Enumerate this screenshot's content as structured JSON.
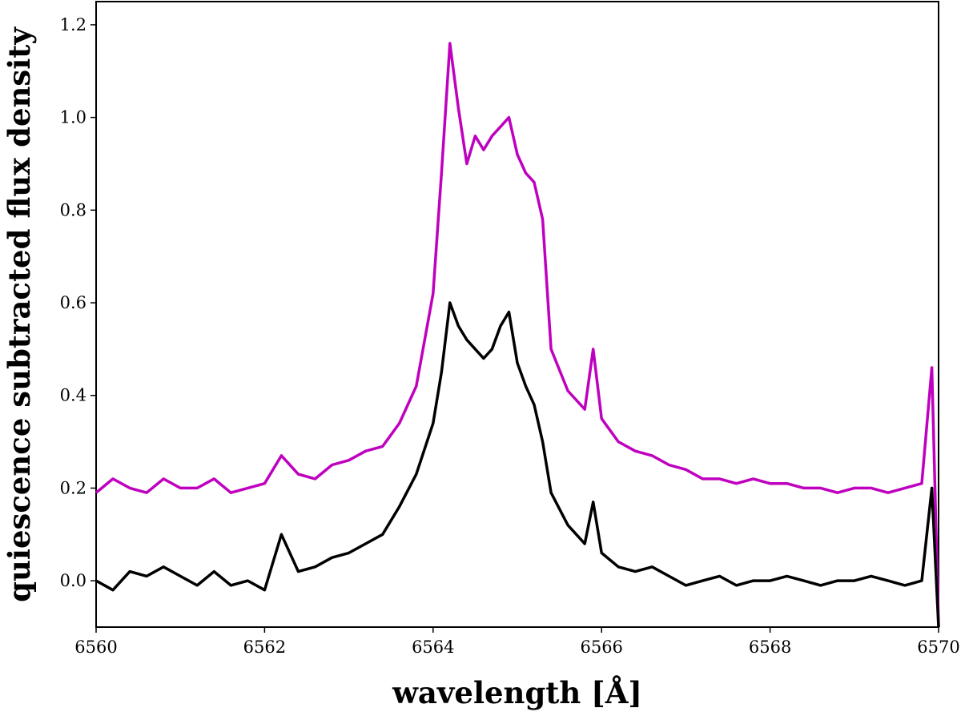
{
  "chart_data": {
    "type": "line",
    "xlabel": "wavelength [Å]",
    "ylabel": "quiescence subtracted flux density",
    "xlim": [
      6560,
      6570
    ],
    "ylim": [
      -0.1,
      1.25
    ],
    "x_ticks": [
      "6560",
      "6562",
      "6564",
      "6566",
      "6568",
      "6570"
    ],
    "y_ticks": [
      "0.0",
      "0.2",
      "0.4",
      "0.6",
      "0.8",
      "1.0",
      "1.2"
    ],
    "grid": false,
    "legend": "none",
    "series": [
      {
        "color": "#bf00bf",
        "x": [
          6560.0,
          6560.2,
          6560.4,
          6560.6,
          6560.8,
          6561.0,
          6561.2,
          6561.4,
          6561.6,
          6561.8,
          6562.0,
          6562.2,
          6562.4,
          6562.6,
          6562.8,
          6563.0,
          6563.2,
          6563.4,
          6563.6,
          6563.8,
          6564.0,
          6564.1,
          6564.2,
          6564.3,
          6564.4,
          6564.5,
          6564.6,
          6564.7,
          6564.8,
          6564.9,
          6565.0,
          6565.1,
          6565.2,
          6565.3,
          6565.4,
          6565.6,
          6565.8,
          6565.9,
          6566.0,
          6566.2,
          6566.4,
          6566.6,
          6566.8,
          6567.0,
          6567.2,
          6567.4,
          6567.6,
          6567.8,
          6568.0,
          6568.2,
          6568.4,
          6568.6,
          6568.8,
          6569.0,
          6569.2,
          6569.4,
          6569.6,
          6569.8,
          6569.92,
          6570.0
        ],
        "y": [
          0.19,
          0.22,
          0.2,
          0.19,
          0.22,
          0.2,
          0.2,
          0.22,
          0.19,
          0.2,
          0.21,
          0.27,
          0.23,
          0.22,
          0.25,
          0.26,
          0.28,
          0.29,
          0.34,
          0.42,
          0.62,
          0.88,
          1.16,
          1.02,
          0.9,
          0.96,
          0.93,
          0.96,
          0.98,
          1.0,
          0.92,
          0.88,
          0.86,
          0.78,
          0.5,
          0.41,
          0.37,
          0.5,
          0.35,
          0.3,
          0.28,
          0.27,
          0.25,
          0.24,
          0.22,
          0.22,
          0.21,
          0.22,
          0.21,
          0.21,
          0.2,
          0.2,
          0.19,
          0.2,
          0.2,
          0.19,
          0.2,
          0.21,
          0.46,
          -0.1
        ]
      },
      {
        "color": "#000000",
        "x": [
          6560.0,
          6560.2,
          6560.4,
          6560.6,
          6560.8,
          6561.0,
          6561.2,
          6561.4,
          6561.6,
          6561.8,
          6562.0,
          6562.2,
          6562.4,
          6562.6,
          6562.8,
          6563.0,
          6563.2,
          6563.4,
          6563.6,
          6563.8,
          6564.0,
          6564.1,
          6564.2,
          6564.3,
          6564.4,
          6564.5,
          6564.6,
          6564.7,
          6564.8,
          6564.9,
          6565.0,
          6565.1,
          6565.2,
          6565.3,
          6565.4,
          6565.6,
          6565.8,
          6565.9,
          6566.0,
          6566.2,
          6566.4,
          6566.6,
          6566.8,
          6567.0,
          6567.2,
          6567.4,
          6567.6,
          6567.8,
          6568.0,
          6568.2,
          6568.4,
          6568.6,
          6568.8,
          6569.0,
          6569.2,
          6569.4,
          6569.6,
          6569.8,
          6569.92,
          6570.0
        ],
        "y": [
          0.0,
          -0.02,
          0.02,
          0.01,
          0.03,
          0.01,
          -0.01,
          0.02,
          -0.01,
          0.0,
          -0.02,
          0.1,
          0.02,
          0.03,
          0.05,
          0.06,
          0.08,
          0.1,
          0.16,
          0.23,
          0.34,
          0.45,
          0.6,
          0.55,
          0.52,
          0.5,
          0.48,
          0.5,
          0.55,
          0.58,
          0.47,
          0.42,
          0.38,
          0.3,
          0.19,
          0.12,
          0.08,
          0.17,
          0.06,
          0.03,
          0.02,
          0.03,
          0.01,
          -0.01,
          0.0,
          0.01,
          -0.01,
          0.0,
          0.0,
          0.01,
          0.0,
          -0.01,
          0.0,
          0.0,
          0.01,
          0.0,
          -0.01,
          0.0,
          0.2,
          -0.1
        ]
      }
    ]
  }
}
